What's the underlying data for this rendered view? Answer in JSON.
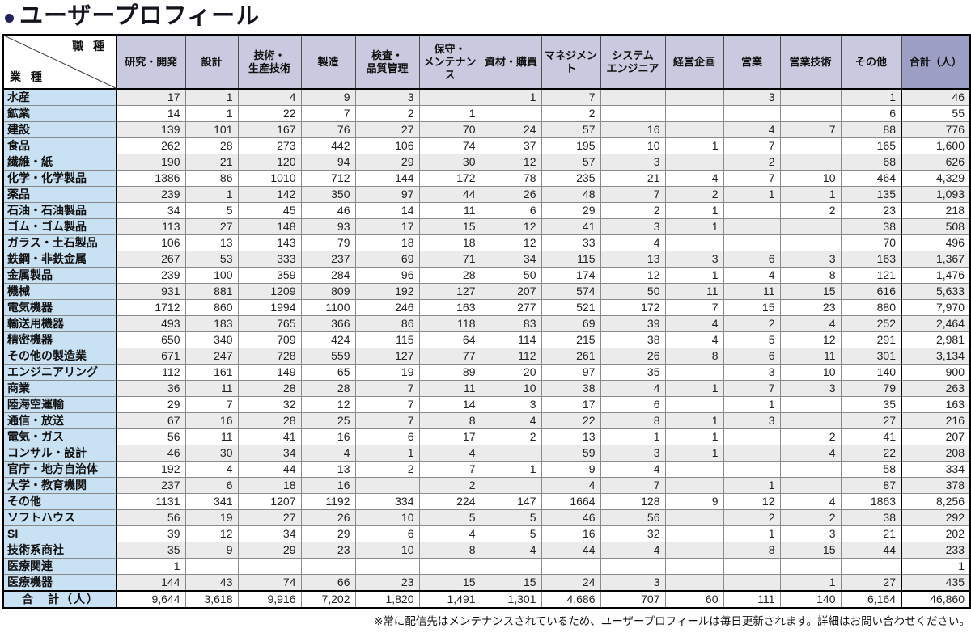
{
  "title": {
    "text": "ユーザープロフィール"
  },
  "footnote": "※常に配信先はメンテナンスされているため、ユーザープロフィールは毎日更新されます。詳細はお問い合わせください。",
  "colors": {
    "header_bg": "#c9cadf",
    "total_header_bg": "#9da0c4",
    "row_label_bg": "#c8e2f3",
    "stripe_bg": "#ebebeb",
    "bullet": "#22225c",
    "border_black": "#000000",
    "grid_gray": "#8a8a8a"
  },
  "table": {
    "corner": {
      "col_axis": "職 種",
      "row_axis": "業 種"
    },
    "columns": [
      "研究・開発",
      "設計",
      "技術・\n生産技術",
      "製造",
      "検査・\n品質管理",
      "保守・\nメンテナンス",
      "資材・購買",
      "マネジメント",
      "システム\nエンジニア",
      "経営企画",
      "営業",
      "営業技術",
      "その他",
      "合計（人）"
    ],
    "rows": [
      {
        "label": "水産",
        "values": [
          "17",
          "1",
          "4",
          "9",
          "3",
          "",
          "1",
          "7",
          "",
          "",
          "3",
          "",
          "1",
          "46"
        ]
      },
      {
        "label": "鉱業",
        "values": [
          "14",
          "1",
          "22",
          "7",
          "2",
          "1",
          "",
          "2",
          "",
          "",
          "",
          "",
          "6",
          "55"
        ]
      },
      {
        "label": "建設",
        "values": [
          "139",
          "101",
          "167",
          "76",
          "27",
          "70",
          "24",
          "57",
          "16",
          "",
          "4",
          "7",
          "88",
          "776"
        ]
      },
      {
        "label": "食品",
        "values": [
          "262",
          "28",
          "273",
          "442",
          "106",
          "74",
          "37",
          "195",
          "10",
          "1",
          "7",
          "",
          "165",
          "1,600"
        ]
      },
      {
        "label": "繊維・紙",
        "values": [
          "190",
          "21",
          "120",
          "94",
          "29",
          "30",
          "12",
          "57",
          "3",
          "",
          "2",
          "",
          "68",
          "626"
        ]
      },
      {
        "label": "化学・化学製品",
        "values": [
          "1386",
          "86",
          "1010",
          "712",
          "144",
          "172",
          "78",
          "235",
          "21",
          "4",
          "7",
          "10",
          "464",
          "4,329"
        ]
      },
      {
        "label": "薬品",
        "values": [
          "239",
          "1",
          "142",
          "350",
          "97",
          "44",
          "26",
          "48",
          "7",
          "2",
          "1",
          "1",
          "135",
          "1,093"
        ]
      },
      {
        "label": "石油・石油製品",
        "values": [
          "34",
          "5",
          "45",
          "46",
          "14",
          "11",
          "6",
          "29",
          "2",
          "1",
          "",
          "2",
          "23",
          "218"
        ]
      },
      {
        "label": "ゴム・ゴム製品",
        "values": [
          "113",
          "27",
          "148",
          "93",
          "17",
          "15",
          "12",
          "41",
          "3",
          "1",
          "",
          "",
          "38",
          "508"
        ]
      },
      {
        "label": "ガラス・土石製品",
        "values": [
          "106",
          "13",
          "143",
          "79",
          "18",
          "18",
          "12",
          "33",
          "4",
          "",
          "",
          "",
          "70",
          "496"
        ]
      },
      {
        "label": "鉄鋼・非鉄金属",
        "values": [
          "267",
          "53",
          "333",
          "237",
          "69",
          "71",
          "34",
          "115",
          "13",
          "3",
          "6",
          "3",
          "163",
          "1,367"
        ]
      },
      {
        "label": "金属製品",
        "values": [
          "239",
          "100",
          "359",
          "284",
          "96",
          "28",
          "50",
          "174",
          "12",
          "1",
          "4",
          "8",
          "121",
          "1,476"
        ]
      },
      {
        "label": "機械",
        "values": [
          "931",
          "881",
          "1209",
          "809",
          "192",
          "127",
          "207",
          "574",
          "50",
          "11",
          "11",
          "15",
          "616",
          "5,633"
        ]
      },
      {
        "label": "電気機器",
        "values": [
          "1712",
          "860",
          "1994",
          "1100",
          "246",
          "163",
          "277",
          "521",
          "172",
          "7",
          "15",
          "23",
          "880",
          "7,970"
        ]
      },
      {
        "label": "輸送用機器",
        "values": [
          "493",
          "183",
          "765",
          "366",
          "86",
          "118",
          "83",
          "69",
          "39",
          "4",
          "2",
          "4",
          "252",
          "2,464"
        ]
      },
      {
        "label": "精密機器",
        "values": [
          "650",
          "340",
          "709",
          "424",
          "115",
          "64",
          "114",
          "215",
          "38",
          "4",
          "5",
          "12",
          "291",
          "2,981"
        ]
      },
      {
        "label": "その他の製造業",
        "values": [
          "671",
          "247",
          "728",
          "559",
          "127",
          "77",
          "112",
          "261",
          "26",
          "8",
          "6",
          "11",
          "301",
          "3,134"
        ]
      },
      {
        "label": "エンジニアリング",
        "values": [
          "112",
          "161",
          "149",
          "65",
          "19",
          "89",
          "20",
          "97",
          "35",
          "",
          "3",
          "10",
          "140",
          "900"
        ]
      },
      {
        "label": "商業",
        "values": [
          "36",
          "11",
          "28",
          "28",
          "7",
          "11",
          "10",
          "38",
          "4",
          "1",
          "7",
          "3",
          "79",
          "263"
        ]
      },
      {
        "label": "陸海空運輸",
        "values": [
          "29",
          "7",
          "32",
          "12",
          "7",
          "14",
          "3",
          "17",
          "6",
          "",
          "1",
          "",
          "35",
          "163"
        ]
      },
      {
        "label": "通信・放送",
        "values": [
          "67",
          "16",
          "28",
          "25",
          "7",
          "8",
          "4",
          "22",
          "8",
          "1",
          "3",
          "",
          "27",
          "216"
        ]
      },
      {
        "label": "電気・ガス",
        "values": [
          "56",
          "11",
          "41",
          "16",
          "6",
          "17",
          "2",
          "13",
          "1",
          "1",
          "",
          "2",
          "41",
          "207"
        ]
      },
      {
        "label": "コンサル・設計",
        "values": [
          "46",
          "30",
          "34",
          "4",
          "1",
          "4",
          "",
          "59",
          "3",
          "1",
          "",
          "4",
          "22",
          "208"
        ]
      },
      {
        "label": "官庁・地方自治体",
        "values": [
          "192",
          "4",
          "44",
          "13",
          "2",
          "7",
          "1",
          "9",
          "4",
          "",
          "",
          "",
          "58",
          "334"
        ]
      },
      {
        "label": "大学・教育機関",
        "values": [
          "237",
          "6",
          "18",
          "16",
          "",
          "2",
          "",
          "4",
          "7",
          "",
          "1",
          "",
          "87",
          "378"
        ]
      },
      {
        "label": "その他",
        "values": [
          "1131",
          "341",
          "1207",
          "1192",
          "334",
          "224",
          "147",
          "1664",
          "128",
          "9",
          "12",
          "4",
          "1863",
          "8,256"
        ]
      },
      {
        "label": "ソフトハウス",
        "values": [
          "56",
          "19",
          "27",
          "26",
          "10",
          "5",
          "5",
          "46",
          "56",
          "",
          "2",
          "2",
          "38",
          "292"
        ]
      },
      {
        "label": "SI",
        "values": [
          "39",
          "12",
          "34",
          "29",
          "6",
          "4",
          "5",
          "16",
          "32",
          "",
          "1",
          "3",
          "21",
          "202"
        ]
      },
      {
        "label": "技術系商社",
        "values": [
          "35",
          "9",
          "29",
          "23",
          "10",
          "8",
          "4",
          "44",
          "4",
          "",
          "8",
          "15",
          "44",
          "233"
        ]
      },
      {
        "label": "医療関連",
        "values": [
          "1",
          "",
          "",
          "",
          "",
          "",
          "",
          "",
          "",
          "",
          "",
          "",
          "",
          "1"
        ]
      },
      {
        "label": "医療機器",
        "values": [
          "144",
          "43",
          "74",
          "66",
          "23",
          "15",
          "15",
          "24",
          "3",
          "",
          "",
          "1",
          "27",
          "435"
        ]
      }
    ],
    "total_row": {
      "label": "合　計（人）",
      "values": [
        "9,644",
        "3,618",
        "9,916",
        "7,202",
        "1,820",
        "1,491",
        "1,301",
        "4,686",
        "707",
        "60",
        "111",
        "140",
        "6,164",
        "46,860"
      ]
    }
  }
}
